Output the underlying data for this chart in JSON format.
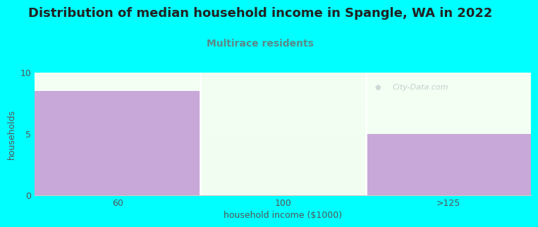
{
  "title": "Distribution of median household income in Spangle, WA in 2022",
  "subtitle": "Multirace residents",
  "title_color": "#1a1a2e",
  "subtitle_color": "#5a8a8a",
  "background_color": "#00ffff",
  "plot_bg_color": "#ffffff",
  "xlabel": "household income ($1000)",
  "ylabel": "households",
  "ylim": [
    0,
    10
  ],
  "yticks": [
    0,
    5,
    10
  ],
  "categories": [
    "60",
    "100",
    ">125"
  ],
  "values": [
    8.5,
    0,
    5
  ],
  "bar_color_purple": "#c8a8d8",
  "bar_color_green": "#e8f5e0",
  "watermark": "City-Data.com",
  "title_fontsize": 13,
  "subtitle_fontsize": 10,
  "axis_label_fontsize": 9,
  "tick_fontsize": 9,
  "ylabel_color": "#555555",
  "xlabel_color": "#555555",
  "tick_color": "#555555"
}
